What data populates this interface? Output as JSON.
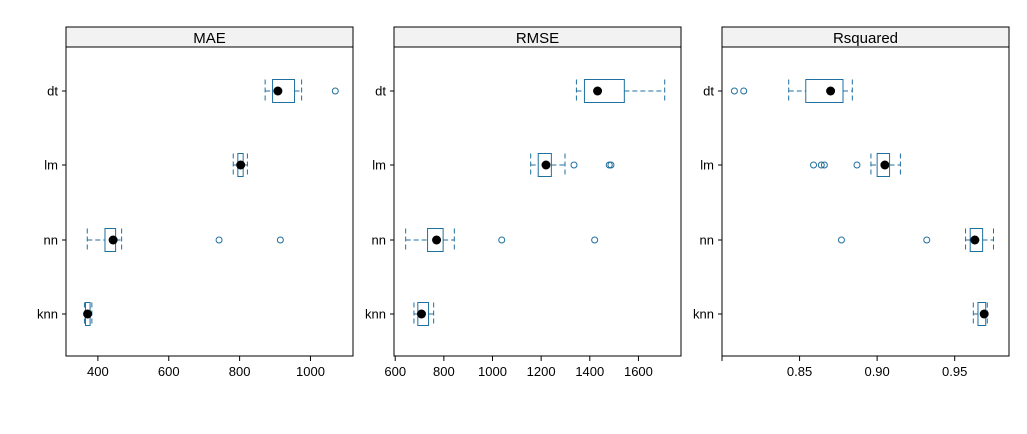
{
  "colors": {
    "box": "#1f6fa0",
    "median": "#000000",
    "strip": "#f2f2f2",
    "frame": "#000000"
  },
  "chart_data": [
    {
      "type": "boxplot",
      "title": "MAE",
      "orientation": "horizontal",
      "categories": [
        "dt",
        "lm",
        "nn",
        "knn"
      ],
      "xlim": [
        310,
        1120
      ],
      "xticks": [
        400,
        600,
        800,
        1000
      ],
      "boxes": [
        {
          "name": "dt",
          "min": 872,
          "q1": 893,
          "median": 908,
          "q3": 955,
          "max": 975,
          "outliers": [
            1070
          ]
        },
        {
          "name": "lm",
          "min": 782,
          "q1": 795,
          "median": 803,
          "q3": 810,
          "max": 822,
          "outliers": []
        },
        {
          "name": "nn",
          "min": 370,
          "q1": 420,
          "median": 443,
          "q3": 450,
          "max": 467,
          "outliers": [
            742,
            915
          ]
        },
        {
          "name": "knn",
          "min": 362,
          "q1": 365,
          "median": 371,
          "q3": 378,
          "max": 383,
          "outliers": []
        }
      ]
    },
    {
      "type": "boxplot",
      "title": "RMSE",
      "orientation": "horizontal",
      "categories": [
        "dt",
        "lm",
        "nn",
        "knn"
      ],
      "xlim": [
        595,
        1775
      ],
      "xticks": [
        600,
        800,
        1000,
        1200,
        1400,
        1600
      ],
      "boxes": [
        {
          "name": "dt",
          "min": 1345,
          "q1": 1378,
          "median": 1432,
          "q3": 1542,
          "max": 1708,
          "outliers": []
        },
        {
          "name": "lm",
          "min": 1157,
          "q1": 1188,
          "median": 1220,
          "q3": 1242,
          "max": 1298,
          "outliers": [
            1335,
            1480,
            1487
          ]
        },
        {
          "name": "nn",
          "min": 643,
          "q1": 733,
          "median": 770,
          "q3": 797,
          "max": 843,
          "outliers": [
            1038,
            1420
          ]
        },
        {
          "name": "knn",
          "min": 677,
          "q1": 693,
          "median": 708,
          "q3": 737,
          "max": 758,
          "outliers": []
        }
      ]
    },
    {
      "type": "boxplot",
      "title": "Rsquared",
      "orientation": "horizontal",
      "categories": [
        "dt",
        "lm",
        "nn",
        "knn"
      ],
      "xlim": [
        0.8,
        0.985
      ],
      "xticks": [
        0.8,
        0.85,
        0.9,
        0.95
      ],
      "xticklabels": [
        "",
        "0.85",
        "0.90",
        "0.95"
      ],
      "boxes": [
        {
          "name": "dt",
          "min": 0.843,
          "q1": 0.854,
          "median": 0.87,
          "q3": 0.878,
          "max": 0.884,
          "outliers": [
            0.808,
            0.814
          ]
        },
        {
          "name": "lm",
          "min": 0.896,
          "q1": 0.9,
          "median": 0.905,
          "q3": 0.908,
          "max": 0.915,
          "outliers": [
            0.859,
            0.864,
            0.866,
            0.887
          ]
        },
        {
          "name": "nn",
          "min": 0.957,
          "q1": 0.96,
          "median": 0.963,
          "q3": 0.968,
          "max": 0.975,
          "outliers": [
            0.877,
            0.932
          ]
        },
        {
          "name": "knn",
          "min": 0.962,
          "q1": 0.965,
          "median": 0.969,
          "q3": 0.97,
          "max": 0.971,
          "outliers": []
        }
      ]
    }
  ]
}
